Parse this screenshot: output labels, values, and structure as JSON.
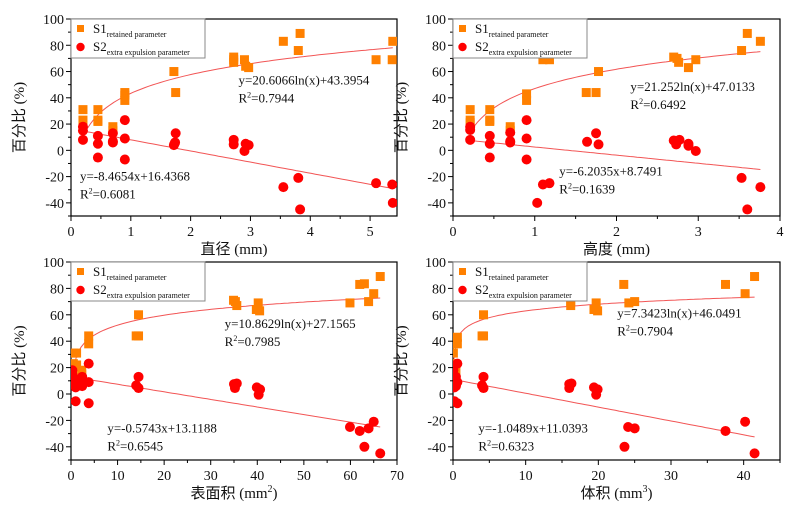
{
  "colors": {
    "s1": "#ff8000",
    "s2": "#ff0000",
    "fit": "#f25555",
    "axis": "#000000",
    "legend_border": "#888888"
  },
  "legend": {
    "s1_main": "S1",
    "s1_sub": "retained parameter",
    "s2_main": "S2",
    "s2_sub": "extra expulsion parameter"
  },
  "chart_data": [
    {
      "type": "scatter",
      "panel": "top-left",
      "ylabel": "百分比 (%)",
      "xlabel_main": "直径 (mm)",
      "xlabel_sup": "",
      "xlim": [
        0,
        5.45
      ],
      "ylim": [
        -50,
        100
      ],
      "xticks": [
        0,
        1,
        2,
        3,
        4,
        5
      ],
      "yticks": [
        -40,
        -20,
        0,
        20,
        40,
        60,
        80,
        100
      ],
      "legend_position": "top-left",
      "series": [
        {
          "name": "S1 retained parameter",
          "marker": "square",
          "points": [
            [
              0.2,
              31
            ],
            [
              0.2,
              23
            ],
            [
              0.2,
              17
            ],
            [
              0.45,
              31
            ],
            [
              0.45,
              23
            ],
            [
              0.45,
              22
            ],
            [
              0.7,
              18
            ],
            [
              0.7,
              15
            ],
            [
              0.9,
              44
            ],
            [
              0.9,
              42
            ],
            [
              0.9,
              38
            ],
            [
              1.72,
              60
            ],
            [
              1.75,
              44
            ],
            [
              2.72,
              71
            ],
            [
              2.72,
              69
            ],
            [
              2.72,
              67
            ],
            [
              2.9,
              69
            ],
            [
              2.92,
              64
            ],
            [
              2.97,
              63
            ],
            [
              3.55,
              83
            ],
            [
              3.8,
              76
            ],
            [
              3.83,
              89
            ],
            [
              5.1,
              69
            ],
            [
              5.37,
              69
            ],
            [
              5.38,
              83
            ]
          ],
          "fit": {
            "kind": "log",
            "a": 20.6066,
            "b": 43.3954,
            "range": [
              0.2,
              5.38
            ]
          },
          "equation": "y=20.6066ln(x)+43.3954",
          "r2_label": "R",
          "r2_value": "=0.7944",
          "label_anchor": [
            2.8,
            50
          ]
        },
        {
          "name": "S2 extra expulsion parameter",
          "marker": "circle",
          "points": [
            [
              0.2,
              18
            ],
            [
              0.2,
              15
            ],
            [
              0.2,
              8
            ],
            [
              0.45,
              11
            ],
            [
              0.45,
              5
            ],
            [
              0.45,
              -5.5
            ],
            [
              0.7,
              13
            ],
            [
              0.7,
              7
            ],
            [
              0.7,
              6
            ],
            [
              0.9,
              23
            ],
            [
              0.9,
              9
            ],
            [
              0.9,
              -7
            ],
            [
              1.72,
              4
            ],
            [
              1.74,
              6
            ],
            [
              1.75,
              13
            ],
            [
              1.73,
              5
            ],
            [
              2.72,
              8
            ],
            [
              2.72,
              4.5
            ],
            [
              2.9,
              -0.5
            ],
            [
              2.92,
              5
            ],
            [
              2.97,
              4
            ],
            [
              3.55,
              -28
            ],
            [
              3.8,
              -21
            ],
            [
              3.83,
              -45
            ],
            [
              5.1,
              -25
            ],
            [
              5.37,
              -26
            ],
            [
              5.38,
              -40
            ]
          ],
          "fit": {
            "kind": "linear",
            "a": -8.4654,
            "b": 16.4368,
            "range": [
              0.2,
              5.38
            ]
          },
          "equation": "y=-8.4654x+16.4368",
          "r2_label": "R",
          "r2_value": "=0.6081",
          "label_anchor": [
            0.15,
            -23
          ]
        }
      ]
    },
    {
      "type": "scatter",
      "panel": "top-right",
      "ylabel": "百分比 (%)",
      "xlabel_main": "高度 (mm)",
      "xlabel_sup": "",
      "xlim": [
        0,
        4
      ],
      "ylim": [
        -50,
        100
      ],
      "xticks": [
        0,
        1,
        2,
        3,
        4
      ],
      "yticks": [
        -40,
        -20,
        0,
        20,
        40,
        60,
        80,
        100
      ],
      "legend_position": "top-left",
      "series": [
        {
          "name": "S1 retained parameter",
          "marker": "square",
          "points": [
            [
              0.21,
              31
            ],
            [
              0.21,
              23
            ],
            [
              0.21,
              21
            ],
            [
              0.45,
              31
            ],
            [
              0.45,
              23
            ],
            [
              0.45,
              22
            ],
            [
              0.7,
              18
            ],
            [
              0.7,
              15
            ],
            [
              0.9,
              43
            ],
            [
              0.9,
              38
            ],
            [
              1.1,
              69
            ],
            [
              1.18,
              69
            ],
            [
              1.63,
              44
            ],
            [
              1.75,
              44
            ],
            [
              1.78,
              60
            ],
            [
              2.7,
              71
            ],
            [
              2.74,
              70
            ],
            [
              2.76,
              67
            ],
            [
              2.88,
              63
            ],
            [
              2.97,
              69
            ],
            [
              3.53,
              76
            ],
            [
              3.6,
              89
            ],
            [
              3.76,
              83
            ]
          ],
          "fit": {
            "kind": "log",
            "a": 21.252,
            "b": 47.0133,
            "range": [
              0.21,
              3.76
            ]
          },
          "equation": "y=21.252ln(x)+47.0133",
          "r2_label": "R",
          "r2_value": "=0.6492",
          "label_anchor": [
            2.17,
            45
          ]
        },
        {
          "name": "S2 extra expulsion parameter",
          "marker": "circle",
          "points": [
            [
              0.21,
              18
            ],
            [
              0.21,
              15.5
            ],
            [
              0.21,
              8
            ],
            [
              0.45,
              11
            ],
            [
              0.45,
              5
            ],
            [
              0.45,
              -5.5
            ],
            [
              0.7,
              13.5
            ],
            [
              0.7,
              7
            ],
            [
              0.7,
              6
            ],
            [
              0.9,
              23
            ],
            [
              0.9,
              9
            ],
            [
              0.9,
              -7
            ],
            [
              1.03,
              -40
            ],
            [
              1.1,
              -26
            ],
            [
              1.18,
              -25
            ],
            [
              1.64,
              6.5
            ],
            [
              1.75,
              13
            ],
            [
              1.78,
              4.5
            ],
            [
              2.7,
              7.5
            ],
            [
              2.73,
              4.5
            ],
            [
              2.77,
              8
            ],
            [
              2.88,
              5
            ],
            [
              2.88,
              3.5
            ],
            [
              2.97,
              -0.5
            ],
            [
              3.53,
              -21
            ],
            [
              3.6,
              -45
            ],
            [
              3.76,
              -28
            ]
          ],
          "fit": {
            "kind": "linear",
            "a": -6.2035,
            "b": 8.7491,
            "range": [
              0.21,
              3.76
            ]
          },
          "equation": "y=-6.2035x+8.7491",
          "r2_label": "R",
          "r2_value": "=0.1639",
          "label_anchor": [
            1.3,
            -19
          ]
        }
      ]
    },
    {
      "type": "scatter",
      "panel": "bottom-left",
      "ylabel": "百分比 (%)",
      "xlabel_main": "表面积 (mm",
      "xlabel_sup": "2",
      "xlabel_tail": ")",
      "xlim": [
        0,
        70
      ],
      "ylim": [
        -50,
        100
      ],
      "xticks": [
        0,
        10,
        20,
        30,
        40,
        50,
        60,
        70
      ],
      "yticks": [
        -40,
        -20,
        0,
        20,
        40,
        60,
        80,
        100
      ],
      "legend_position": "top-left",
      "series": [
        {
          "name": "S1 retained parameter",
          "marker": "square",
          "points": [
            [
              0.5,
              31
            ],
            [
              1.2,
              31
            ],
            [
              0.5,
              23
            ],
            [
              1.2,
              22
            ],
            [
              2.3,
              18
            ],
            [
              2.3,
              15
            ],
            [
              3.8,
              44
            ],
            [
              3.8,
              38
            ],
            [
              14,
              44
            ],
            [
              14.5,
              44
            ],
            [
              14.5,
              60
            ],
            [
              34.9,
              71
            ],
            [
              35.3,
              70
            ],
            [
              35.6,
              67
            ],
            [
              39.8,
              64
            ],
            [
              40.2,
              69
            ],
            [
              40.5,
              63
            ],
            [
              59.9,
              69
            ],
            [
              62,
              83
            ],
            [
              63,
              83.5
            ],
            [
              63.9,
              70
            ],
            [
              65,
              76
            ],
            [
              66.4,
              89
            ]
          ],
          "fit": {
            "kind": "log",
            "a": 10.8629,
            "b": 27.1565,
            "range": [
              0.5,
              66.4
            ]
          },
          "equation": "y=10.8629ln(x)+27.1565",
          "r2_label": "R",
          "r2_value": "=0.7985",
          "label_anchor": [
            33,
            50
          ]
        },
        {
          "name": "S2 extra expulsion parameter",
          "marker": "circle",
          "points": [
            [
              0.3,
              18
            ],
            [
              0.3,
              15
            ],
            [
              0.3,
              8
            ],
            [
              1,
              11
            ],
            [
              1,
              5
            ],
            [
              1,
              -5.5
            ],
            [
              2.4,
              13
            ],
            [
              2.4,
              7
            ],
            [
              2.4,
              6
            ],
            [
              3.8,
              23
            ],
            [
              3.8,
              9
            ],
            [
              3.8,
              -7
            ],
            [
              14,
              6.5
            ],
            [
              14.5,
              13
            ],
            [
              14.5,
              4.5
            ],
            [
              35,
              7.5
            ],
            [
              35.2,
              4.5
            ],
            [
              35.6,
              8
            ],
            [
              39.9,
              5
            ],
            [
              40.3,
              -0.5
            ],
            [
              40.6,
              3.5
            ],
            [
              59.9,
              -25
            ],
            [
              62,
              -28
            ],
            [
              63,
              -40
            ],
            [
              63.9,
              -26
            ],
            [
              65,
              -21
            ],
            [
              66.4,
              -45
            ]
          ],
          "fit": {
            "kind": "linear",
            "a": -0.5743,
            "b": 13.1188,
            "range": [
              0.3,
              66.4
            ]
          },
          "equation": "y=-0.5743x+13.1188",
          "r2_label": "R",
          "r2_value": "=0.6545",
          "label_anchor": [
            7.8,
            -29
          ]
        }
      ]
    },
    {
      "type": "scatter",
      "panel": "bottom-right",
      "ylabel": "百分比 (%)",
      "xlabel_main": "体积 (mm",
      "xlabel_sup": "3",
      "xlabel_tail": ")",
      "xlim": [
        0,
        45
      ],
      "ylim": [
        -50,
        100
      ],
      "xticks": [
        0,
        10,
        20,
        30,
        40
      ],
      "yticks": [
        -40,
        -20,
        0,
        20,
        40,
        60,
        80,
        100
      ],
      "legend_position": "top-left",
      "series": [
        {
          "name": "S1 retained parameter",
          "marker": "square",
          "points": [
            [
              0.05,
              31
            ],
            [
              0.2,
              23
            ],
            [
              0.4,
              18
            ],
            [
              0.6,
              43
            ],
            [
              0.6,
              38
            ],
            [
              4,
              44
            ],
            [
              4.2,
              44
            ],
            [
              4.2,
              60
            ],
            [
              16.2,
              67
            ],
            [
              16.2,
              70
            ],
            [
              19.4,
              64
            ],
            [
              19.7,
              69
            ],
            [
              19.9,
              63
            ],
            [
              23.5,
              83
            ],
            [
              24.2,
              69
            ],
            [
              25,
              70
            ],
            [
              37.5,
              83
            ],
            [
              40.2,
              76
            ],
            [
              41.5,
              89
            ]
          ],
          "fit": {
            "kind": "log",
            "a": 7.3423,
            "b": 46.0491,
            "range": [
              0.05,
              41.5
            ]
          },
          "equation": "y=7.3423ln(x)+46.0491",
          "r2_label": "R",
          "r2_value": "=0.7904",
          "label_anchor": [
            22.6,
            58
          ]
        },
        {
          "name": "S2 extra expulsion parameter",
          "marker": "circle",
          "points": [
            [
              0.05,
              18
            ],
            [
              0.05,
              15
            ],
            [
              0.05,
              8
            ],
            [
              0.2,
              11
            ],
            [
              0.2,
              5
            ],
            [
              0.2,
              -5.5
            ],
            [
              0.4,
              13
            ],
            [
              0.4,
              7
            ],
            [
              0.4,
              6
            ],
            [
              0.6,
              23
            ],
            [
              0.6,
              9
            ],
            [
              0.6,
              -7
            ],
            [
              4,
              6.5
            ],
            [
              4.2,
              13
            ],
            [
              4.2,
              4.5
            ],
            [
              16,
              7.5
            ],
            [
              16,
              4.5
            ],
            [
              16.3,
              8
            ],
            [
              19.4,
              5
            ],
            [
              19.7,
              -0.5
            ],
            [
              19.9,
              3.5
            ],
            [
              23.6,
              -40
            ],
            [
              24.1,
              -25
            ],
            [
              25,
              -26
            ],
            [
              37.5,
              -28
            ],
            [
              40.2,
              -21
            ],
            [
              41.5,
              -45
            ]
          ],
          "fit": {
            "kind": "linear",
            "a": -1.0489,
            "b": 11.0393,
            "range": [
              0.05,
              41.5
            ]
          },
          "equation": "y=-1.0489x+11.0393",
          "r2_label": "R",
          "r2_value": "=0.6323",
          "label_anchor": [
            3.5,
            -29
          ]
        }
      ]
    }
  ]
}
